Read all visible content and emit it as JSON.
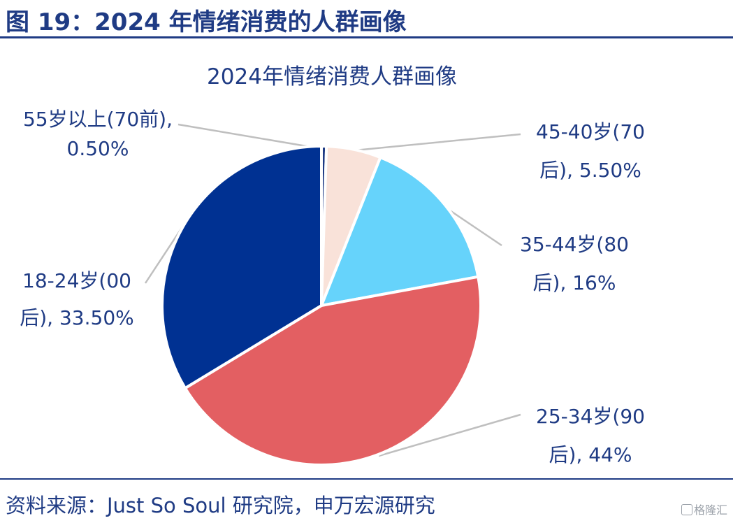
{
  "figure_title": "图 19：2024 年情绪消费的人群画像",
  "source": "资料来源：Just So Soul 研究院，申万宏源研究",
  "watermark": "格隆汇",
  "chart_data": {
    "type": "pie",
    "title": "2024年情绪消费人群画像",
    "slices": [
      {
        "label_line1": "55岁以上(70前),",
        "label_line2": "0.50%",
        "value": 0.5,
        "color": "#1f3b84"
      },
      {
        "label_line1": "45-40岁(70",
        "label_line2": "后), 5.50%",
        "value": 5.5,
        "color": "#f9e2d9"
      },
      {
        "label_line1": "35-44岁(80",
        "label_line2": "后), 16%",
        "value": 16,
        "color": "#66d3fb"
      },
      {
        "label_line1": "25-34岁(90",
        "label_line2": "后), 44%",
        "value": 44,
        "color": "#e35f62"
      },
      {
        "label_line1": "18-24岁(00",
        "label_line2": "后), 33.50%",
        "value": 33.5,
        "color": "#003192"
      }
    ]
  }
}
